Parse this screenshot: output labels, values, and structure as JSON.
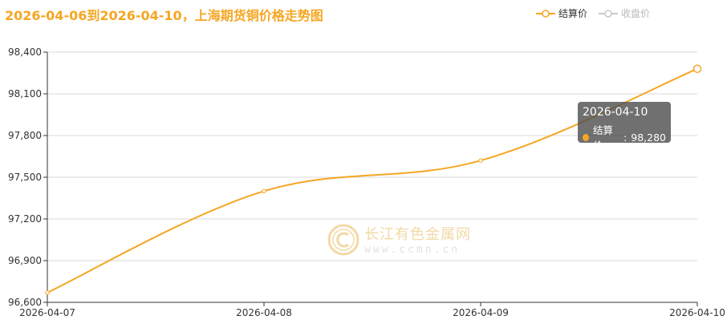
{
  "colors": {
    "settle": "#f5a623",
    "close_off": "#c8c8c8",
    "title": "#f5a623",
    "grid": "#d9d9d9",
    "axis": "#333333"
  },
  "title": "2026-04-06到2026-04-10，上海期货铜价格走势图",
  "legend": [
    {
      "label": "结算价",
      "active": true
    },
    {
      "label": "收盘价",
      "active": false
    }
  ],
  "tooltip": {
    "date": "2026-04-10",
    "series": "结算价",
    "value": "98,280"
  },
  "watermark": {
    "name": "长江有色金属网",
    "url": "www.ccmn.cn"
  },
  "chart_data": {
    "type": "line",
    "x": [
      "2026-04-07",
      "2026-04-08",
      "2026-04-09",
      "2026-04-10"
    ],
    "series": [
      {
        "name": "结算价",
        "values": [
          96670,
          97400,
          97620,
          98280
        ]
      }
    ],
    "ylim": [
      96600,
      98400
    ],
    "yticks": [
      96600,
      96900,
      97200,
      97500,
      97800,
      98100,
      98400
    ],
    "ytick_labels": [
      "96,600",
      "96,900",
      "97,200",
      "97,500",
      "97,800",
      "98,100",
      "98,400"
    ],
    "grid": true,
    "legend_position": "top-right"
  }
}
